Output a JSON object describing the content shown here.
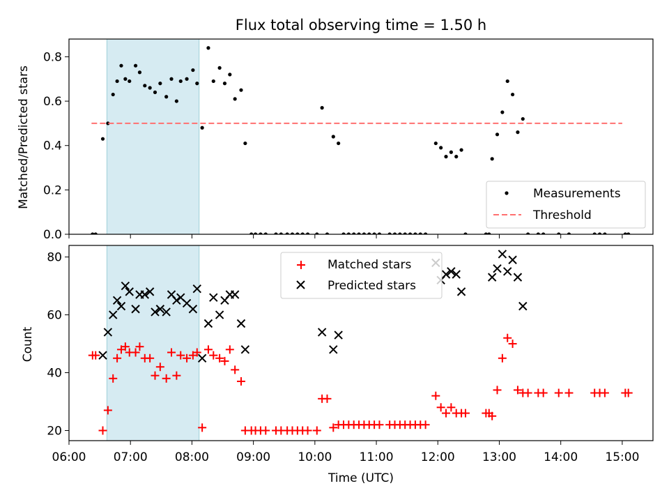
{
  "chart_data": [
    {
      "type": "scatter",
      "title": "Flux total observing time = 1.50 h",
      "ylabel": "Matched/Predicted stars",
      "xlabel": "",
      "xlim": [
        "06:00",
        "15:30"
      ],
      "ylim": [
        0,
        0.88
      ],
      "xticks": [
        "06:00",
        "07:00",
        "08:00",
        "09:00",
        "10:00",
        "11:00",
        "12:00",
        "13:00",
        "14:00",
        "15:00"
      ],
      "yticks": [
        "0.0",
        "0.2",
        "0.4",
        "0.6",
        "0.8"
      ],
      "shaded_span": [
        "06:37",
        "08:07"
      ],
      "legend_position": "lower-right",
      "series": [
        {
          "name": "Measurements",
          "marker": "dot",
          "color": "#000000",
          "points": [
            [
              "06:23",
              0.0
            ],
            [
              "06:26",
              0.0
            ],
            [
              "06:33",
              0.43
            ],
            [
              "06:38",
              0.5
            ],
            [
              "06:43",
              0.63
            ],
            [
              "06:47",
              0.69
            ],
            [
              "06:51",
              0.76
            ],
            [
              "06:55",
              0.7
            ],
            [
              "06:59",
              0.69
            ],
            [
              "07:05",
              0.76
            ],
            [
              "07:09",
              0.73
            ],
            [
              "07:14",
              0.67
            ],
            [
              "07:19",
              0.66
            ],
            [
              "07:24",
              0.64
            ],
            [
              "07:29",
              0.68
            ],
            [
              "07:35",
              0.62
            ],
            [
              "07:40",
              0.7
            ],
            [
              "07:45",
              0.6
            ],
            [
              "07:49",
              0.69
            ],
            [
              "07:55",
              0.7
            ],
            [
              "08:01",
              0.74
            ],
            [
              "08:05",
              0.68
            ],
            [
              "08:10",
              0.48
            ],
            [
              "08:16",
              0.84
            ],
            [
              "08:21",
              0.69
            ],
            [
              "08:27",
              0.75
            ],
            [
              "08:32",
              0.68
            ],
            [
              "08:37",
              0.72
            ],
            [
              "08:42",
              0.61
            ],
            [
              "08:48",
              0.65
            ],
            [
              "08:52",
              0.41
            ],
            [
              "08:58",
              0.0
            ],
            [
              "09:02",
              0.0
            ],
            [
              "09:07",
              0.0
            ],
            [
              "09:12",
              0.0
            ],
            [
              "09:22",
              0.0
            ],
            [
              "09:27",
              0.0
            ],
            [
              "09:33",
              0.0
            ],
            [
              "09:38",
              0.0
            ],
            [
              "09:43",
              0.0
            ],
            [
              "09:48",
              0.0
            ],
            [
              "09:53",
              0.0
            ],
            [
              "10:02",
              0.0
            ],
            [
              "10:07",
              0.57
            ],
            [
              "10:12",
              0.0
            ],
            [
              "10:18",
              0.44
            ],
            [
              "10:23",
              0.41
            ],
            [
              "10:28",
              0.0
            ],
            [
              "10:33",
              0.0
            ],
            [
              "10:38",
              0.0
            ],
            [
              "10:43",
              0.0
            ],
            [
              "10:48",
              0.0
            ],
            [
              "10:53",
              0.0
            ],
            [
              "10:58",
              0.0
            ],
            [
              "11:03",
              0.0
            ],
            [
              "11:13",
              0.0
            ],
            [
              "11:18",
              0.0
            ],
            [
              "11:23",
              0.0
            ],
            [
              "11:28",
              0.0
            ],
            [
              "11:33",
              0.0
            ],
            [
              "11:38",
              0.0
            ],
            [
              "11:43",
              0.0
            ],
            [
              "11:48",
              0.0
            ],
            [
              "11:58",
              0.41
            ],
            [
              "12:03",
              0.39
            ],
            [
              "12:08",
              0.35
            ],
            [
              "12:13",
              0.37
            ],
            [
              "12:18",
              0.35
            ],
            [
              "12:23",
              0.38
            ],
            [
              "12:27",
              0.0
            ],
            [
              "12:47",
              0.0
            ],
            [
              "12:50",
              0.0
            ],
            [
              "12:53",
              0.34
            ],
            [
              "12:58",
              0.45
            ],
            [
              "13:03",
              0.55
            ],
            [
              "13:08",
              0.69
            ],
            [
              "13:13",
              0.63
            ],
            [
              "13:18",
              0.46
            ],
            [
              "13:23",
              0.52
            ],
            [
              "13:28",
              0.0
            ],
            [
              "13:38",
              0.0
            ],
            [
              "13:43",
              0.0
            ],
            [
              "13:58",
              0.0
            ],
            [
              "14:08",
              0.0
            ],
            [
              "14:33",
              0.0
            ],
            [
              "14:38",
              0.0
            ],
            [
              "14:43",
              0.0
            ],
            [
              "15:03",
              0.0
            ],
            [
              "15:06",
              0.0
            ]
          ]
        },
        {
          "name": "Threshold",
          "type": "line",
          "style": "dashed",
          "color": "#ff7070",
          "points": [
            [
              "06:22",
              0.5
            ],
            [
              "15:00",
              0.5
            ]
          ]
        }
      ]
    },
    {
      "type": "scatter",
      "title": "",
      "ylabel": "Count",
      "xlabel": "Time (UTC)",
      "xlim": [
        "06:00",
        "15:30"
      ],
      "ylim": [
        16.5,
        84
      ],
      "xticks": [
        "06:00",
        "07:00",
        "08:00",
        "09:00",
        "10:00",
        "11:00",
        "12:00",
        "13:00",
        "14:00",
        "15:00"
      ],
      "yticks": [
        "20",
        "40",
        "60",
        "80"
      ],
      "shaded_span": [
        "06:37",
        "08:07"
      ],
      "legend_position": "upper-center",
      "series": [
        {
          "name": "Matched stars",
          "marker": "plus",
          "color": "#ff0000",
          "points": [
            [
              "06:23",
              46
            ],
            [
              "06:26",
              46
            ],
            [
              "06:33",
              20
            ],
            [
              "06:38",
              27
            ],
            [
              "06:43",
              38
            ],
            [
              "06:47",
              45
            ],
            [
              "06:51",
              48
            ],
            [
              "06:55",
              49
            ],
            [
              "06:59",
              47
            ],
            [
              "07:05",
              47
            ],
            [
              "07:09",
              49
            ],
            [
              "07:14",
              45
            ],
            [
              "07:19",
              45
            ],
            [
              "07:24",
              39
            ],
            [
              "07:29",
              42
            ],
            [
              "07:35",
              38
            ],
            [
              "07:40",
              47
            ],
            [
              "07:45",
              39
            ],
            [
              "07:49",
              46
            ],
            [
              "07:55",
              45
            ],
            [
              "08:01",
              46
            ],
            [
              "08:05",
              47
            ],
            [
              "08:10",
              21
            ],
            [
              "08:16",
              48
            ],
            [
              "08:21",
              46
            ],
            [
              "08:27",
              45
            ],
            [
              "08:32",
              44
            ],
            [
              "08:37",
              48
            ],
            [
              "08:42",
              41
            ],
            [
              "08:48",
              37
            ],
            [
              "08:52",
              20
            ],
            [
              "08:58",
              20
            ],
            [
              "09:02",
              20
            ],
            [
              "09:07",
              20
            ],
            [
              "09:12",
              20
            ],
            [
              "09:22",
              20
            ],
            [
              "09:27",
              20
            ],
            [
              "09:33",
              20
            ],
            [
              "09:38",
              20
            ],
            [
              "09:43",
              20
            ],
            [
              "09:48",
              20
            ],
            [
              "09:53",
              20
            ],
            [
              "10:02",
              20
            ],
            [
              "10:07",
              31
            ],
            [
              "10:12",
              31
            ],
            [
              "10:18",
              21
            ],
            [
              "10:23",
              22
            ],
            [
              "10:28",
              22
            ],
            [
              "10:33",
              22
            ],
            [
              "10:38",
              22
            ],
            [
              "10:43",
              22
            ],
            [
              "10:48",
              22
            ],
            [
              "10:53",
              22
            ],
            [
              "10:58",
              22
            ],
            [
              "11:03",
              22
            ],
            [
              "11:13",
              22
            ],
            [
              "11:18",
              22
            ],
            [
              "11:23",
              22
            ],
            [
              "11:28",
              22
            ],
            [
              "11:33",
              22
            ],
            [
              "11:38",
              22
            ],
            [
              "11:43",
              22
            ],
            [
              "11:48",
              22
            ],
            [
              "11:58",
              32
            ],
            [
              "12:03",
              28
            ],
            [
              "12:08",
              26
            ],
            [
              "12:13",
              28
            ],
            [
              "12:18",
              26
            ],
            [
              "12:23",
              26
            ],
            [
              "12:27",
              26
            ],
            [
              "12:47",
              26
            ],
            [
              "12:50",
              26
            ],
            [
              "12:53",
              25
            ],
            [
              "12:58",
              34
            ],
            [
              "13:03",
              45
            ],
            [
              "13:08",
              52
            ],
            [
              "13:13",
              50
            ],
            [
              "13:18",
              34
            ],
            [
              "13:23",
              33
            ],
            [
              "13:28",
              33
            ],
            [
              "13:38",
              33
            ],
            [
              "13:43",
              33
            ],
            [
              "13:58",
              33
            ],
            [
              "14:08",
              33
            ],
            [
              "14:33",
              33
            ],
            [
              "14:38",
              33
            ],
            [
              "14:43",
              33
            ],
            [
              "15:03",
              33
            ],
            [
              "15:06",
              33
            ]
          ]
        },
        {
          "name": "Predicted stars",
          "marker": "x",
          "color": "#000000",
          "points": [
            [
              "06:33",
              46
            ],
            [
              "06:38",
              54
            ],
            [
              "06:43",
              60
            ],
            [
              "06:47",
              65
            ],
            [
              "06:51",
              63
            ],
            [
              "06:55",
              70
            ],
            [
              "06:59",
              68
            ],
            [
              "07:05",
              62
            ],
            [
              "07:09",
              67
            ],
            [
              "07:14",
              67
            ],
            [
              "07:19",
              68
            ],
            [
              "07:24",
              61
            ],
            [
              "07:29",
              62
            ],
            [
              "07:35",
              61
            ],
            [
              "07:40",
              67
            ],
            [
              "07:45",
              65
            ],
            [
              "07:49",
              66
            ],
            [
              "07:55",
              64
            ],
            [
              "08:01",
              62
            ],
            [
              "08:05",
              69
            ],
            [
              "08:10",
              45
            ],
            [
              "08:16",
              57
            ],
            [
              "08:21",
              66
            ],
            [
              "08:27",
              60
            ],
            [
              "08:32",
              65
            ],
            [
              "08:37",
              67
            ],
            [
              "08:42",
              67
            ],
            [
              "08:48",
              57
            ],
            [
              "08:52",
              48
            ],
            [
              "10:07",
              54
            ],
            [
              "10:18",
              48
            ],
            [
              "10:23",
              53
            ],
            [
              "11:58",
              78
            ],
            [
              "12:03",
              72
            ],
            [
              "12:08",
              74
            ],
            [
              "12:13",
              75
            ],
            [
              "12:18",
              74
            ],
            [
              "12:23",
              68
            ],
            [
              "12:53",
              73
            ],
            [
              "12:58",
              76
            ],
            [
              "13:03",
              81
            ],
            [
              "13:08",
              75
            ],
            [
              "13:13",
              79
            ],
            [
              "13:18",
              73
            ],
            [
              "13:23",
              63
            ]
          ]
        }
      ]
    }
  ]
}
